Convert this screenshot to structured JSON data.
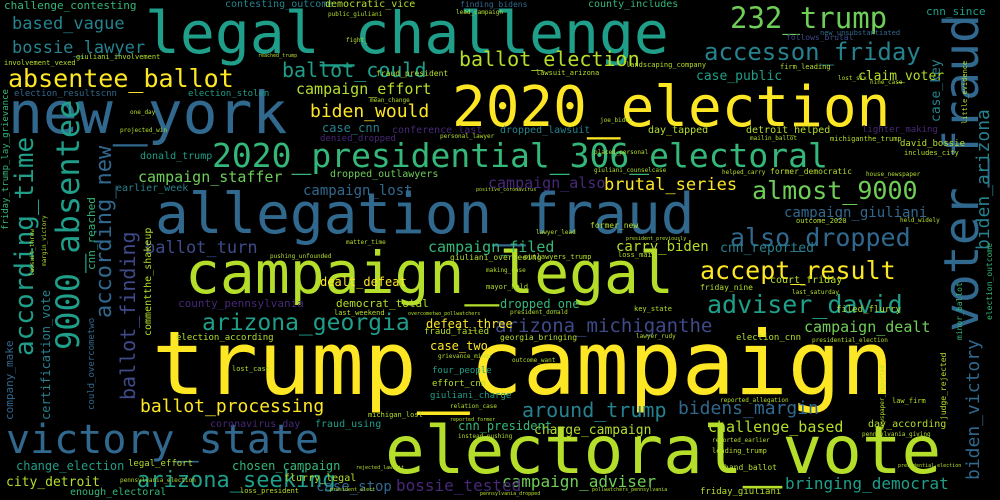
{
  "colors": {
    "background": "#000000",
    "yellow": "#fde725",
    "lime": "#b5de2b",
    "green": "#6ece58",
    "teal_green": "#35b779",
    "teal": "#1f9e89",
    "cyan_blue": "#26828e",
    "blue": "#31688e",
    "indigo": "#3e4a89",
    "purple": "#482878",
    "dark_purple": "#440154"
  },
  "words": {
    "trump_campaign": "trump_campaign",
    "electoral_vote": "electoral_vote",
    "campaign_legal": "campaign_legal",
    "allegation_fraud": "allegation_fraud",
    "election_2020": "2020_election",
    "legal_challenge": "legal_challenge",
    "new_york": "new_york",
    "victory_state": "victory_state",
    "presidential_306": "2020_presidential_306_electoral",
    "voter_fraud": "voter_fraud",
    "absentee_9000": "9000_absentee",
    "absentee_ballot": "absentee_ballot",
    "trump_232": "232_trump",
    "accession_friday": "accesson_friday",
    "accept_result": "accept_result",
    "almost_9000": "almost_9000",
    "also_dropped": "also_dropped",
    "adviser_david": "adviser_david",
    "arizona_georgia": "arizona_georgia",
    "arizona_michiganthe": "arizona_michiganthe",
    "according_time": "according_time",
    "according_new": "according_new",
    "arizona_seeking": "arizona_seeking",
    "biden_victory": "biden_victory",
    "biden_arizona": "biden_arizona",
    "ballot_election": "ballot_election",
    "ballot_could": "ballot_could",
    "biden_would": "biden_would",
    "ballot_processing": "ballot_processing",
    "around_trump": "around_trump",
    "bidens_margin": "bidens_margin",
    "ballot_finding": "ballot_finding",
    "ballot_turn": "ballot_turn",
    "brutal_series": "brutal_series",
    "bossie_lawyer": "bossie_lawyer",
    "based_vague": "based_vague",
    "campaign_effort": "campaign_effort",
    "campaign_staffer": "campaign_staffer",
    "campaign_lost": "campaign_lost",
    "campaign_also": "campaign_also",
    "campaign_filed": "campaign_filed",
    "campaign_giuliani": "campaign_giuliani",
    "campaign_dealt": "campaign_dealt",
    "campaign_adviser": "campaign_adviser",
    "charge_campaign": "charge_campaign",
    "challenge_based": "challenge_based",
    "bringing_democrat": "bringing_democrat",
    "bossie_tested": "bossie_tested",
    "case_stop": "case_stop",
    "chosen_campaign": "chosen_campaign",
    "change_election": "change_election",
    "city_detroit": "city_detroit",
    "case_cnn": "case_cnn",
    "claim_voter": "claim_voter",
    "case_public": "case_public",
    "case_key": "case_key",
    "carry_biden": "carry_biden",
    "cnn_reported": "cnn_reported",
    "cnn_president": "cnn_president",
    "case_two": "case_two",
    "dealt_defeat": "dealt_defeat",
    "dropped_one": "dropped_one",
    "court_friday": "court_friday",
    "defeat_three": "defeat_three",
    "certification_vote": "certification_vote",
    "company_make": "company_make",
    "challenge_contesting": "challenge_contesting",
    "contesting_outcome": "contesting_outcome",
    "democratic_vice": "democratic_vice",
    "county_includes": "county_includes",
    "cnn_since": "cnn_since",
    "donald_trump": "donald_trump",
    "earlier_week": "earlier_week",
    "conference_last": "conference_last",
    "dropped_lawsuit": "dropped_lawsuit",
    "day_tapped": "day_tapped",
    "dropped_outlawyers": "dropped_outlawyers",
    "denied_dropped": "denied_dropped",
    "election_resultscnn": "election_resultscnn",
    "election_stolen": "election_stolen",
    "david_bossie": "david_bossie",
    "county_pennsylvania": "county_pennsylvania",
    "democrat_total": "democrat_total",
    "coronavirus_day": "coronavirus_day",
    "fraud_using": "fraud_using",
    "day_according": "day_according",
    "enough_electoral": "enough_electoral",
    "flurry_legal": "flurry_legal",
    "friday_giuliani": "friday_giuliani",
    "election_according": "election_according",
    "four_people": "four_people",
    "giuliani_charge": "giuliani_charge",
    "effort_cnn": "effort_cnn",
    "filed_flurry": "filed_flurry",
    "fraud_president": "fraud_president",
    "former_new": "former_new",
    "legal_effort": "legal_effort",
    "hand_ballot": "hand_ballot",
    "commentthe_shakeup": "commentthe_shakeup",
    "could_overcometwo": "could_overcometwo",
    "friday_trump": "friday_trump_lay_grievance",
    "cnn_reached": "cnn_reached",
    "detroit_helped": "detroit_helped",
    "judge_rejected": "judge_rejected",
    "minor_ballot": "minor_ballot",
    "election_outcome": "election_outcome",
    "finding_bidens": "finding_bidens",
    "lead_campaign": "lead_campaign",
    "fight": "fight_",
    "public_giuliani": "public_giuliani",
    "reached_trump": "reached_trump",
    "follows_brutal": "follows_brutal",
    "new_unsubstantiated": "new_unsubstantiated",
    "landscaping_company": "landscaping_company",
    "lawsuit_arizona": "lawsuit_arizona",
    "firm_leading": "firm_leading",
    "lost_six": "lost_six",
    "nine_case": "nine_case",
    "little_evidence": "little_evidence",
    "giuliani_involvement": "giuliani_involvement",
    "involvement_vexed": "involvement_vexed",
    "personal_lawyer": "personal_lawyer",
    "joe_biden": "joe_biden",
    "mean_change": "mean_change",
    "projected_win": "projected_win",
    "mailin_ballot": "mailin_ballot",
    "michiganthe_trump": "michiganthe_trump",
    "lighter_making": "lighter_making",
    "includes_city": "includes_city",
    "giuliani_counselcase": "giuliani_counselcase",
    "placed_personal": "placed_personal",
    "former_democratic": "former_democratic",
    "house_newspaper": "house_newspaper",
    "helped_carry": "helped_carry",
    "held_widely": "held_widely",
    "outcome_2020": "outcome_2020",
    "one_day": "one_day",
    "positive_coronavirus": "positive_coronavirus",
    "former_new_york": "former_new_york",
    "matter_time": "matter_time",
    "lawyer_lead": "lawyer_lead",
    "president_previously": "president_previously",
    "giuliani_overseeing": "giuliani_overseeing",
    "outlawyers_trump": "outlawyers_trump",
    "loss_mail": "loss_mail",
    "making_case": "making_case",
    "mayor_held": "mayor_held",
    "friday_nine": "friday_nine",
    "last_saturday": "last_saturday",
    "last_weekend": "last_weekend",
    "overcometwo_pollwatchers": "overcometwo_pollwatchers",
    "president_donald": "president_donald",
    "key_state": "key_state",
    "fraud_failed": "fraud_failed",
    "lawyer_rudy": "lawyer_rudy",
    "georgia_bringing": "georgia_bringing",
    "election_cnn": "election_cnn",
    "presidential_election": "presidential_election",
    "grievance_minor": "grievance_minor",
    "outcome_want": "outcome_want",
    "lost_case": "lost_case",
    "michigan_lost": "michigan_lost",
    "relation_case": "relation_case",
    "instead_pushing": "instead_pushing",
    "reported_former": "reported_former",
    "reported_allegation": "reported_allegation",
    "leading_trump": "leading_trump",
    "reported_earlier": "reported_earlier",
    "newspaper_reported": "newspaper_reported",
    "law_firm": "law_firm",
    "loss_president": "loss_president",
    "pennsylvania_election": "pennsylvania_election",
    "pennsylvania_giving": "pennsylvania_giving",
    "lawsuit_throw": "lawsuit_throw",
    "margin_victory": "margin_victory",
    "pushing_unfounded": "pushing_unfounded",
    "president_elect": "president_elect",
    "pollwatchers_pennsylvania": "pollwatchers_pennsylvania",
    "pennsylvania_dropped": "pennsylvania_dropped",
    "presidential_election_2": "presidential_election",
    "rejected_lawsuit": "rejected_lawsuit"
  }
}
